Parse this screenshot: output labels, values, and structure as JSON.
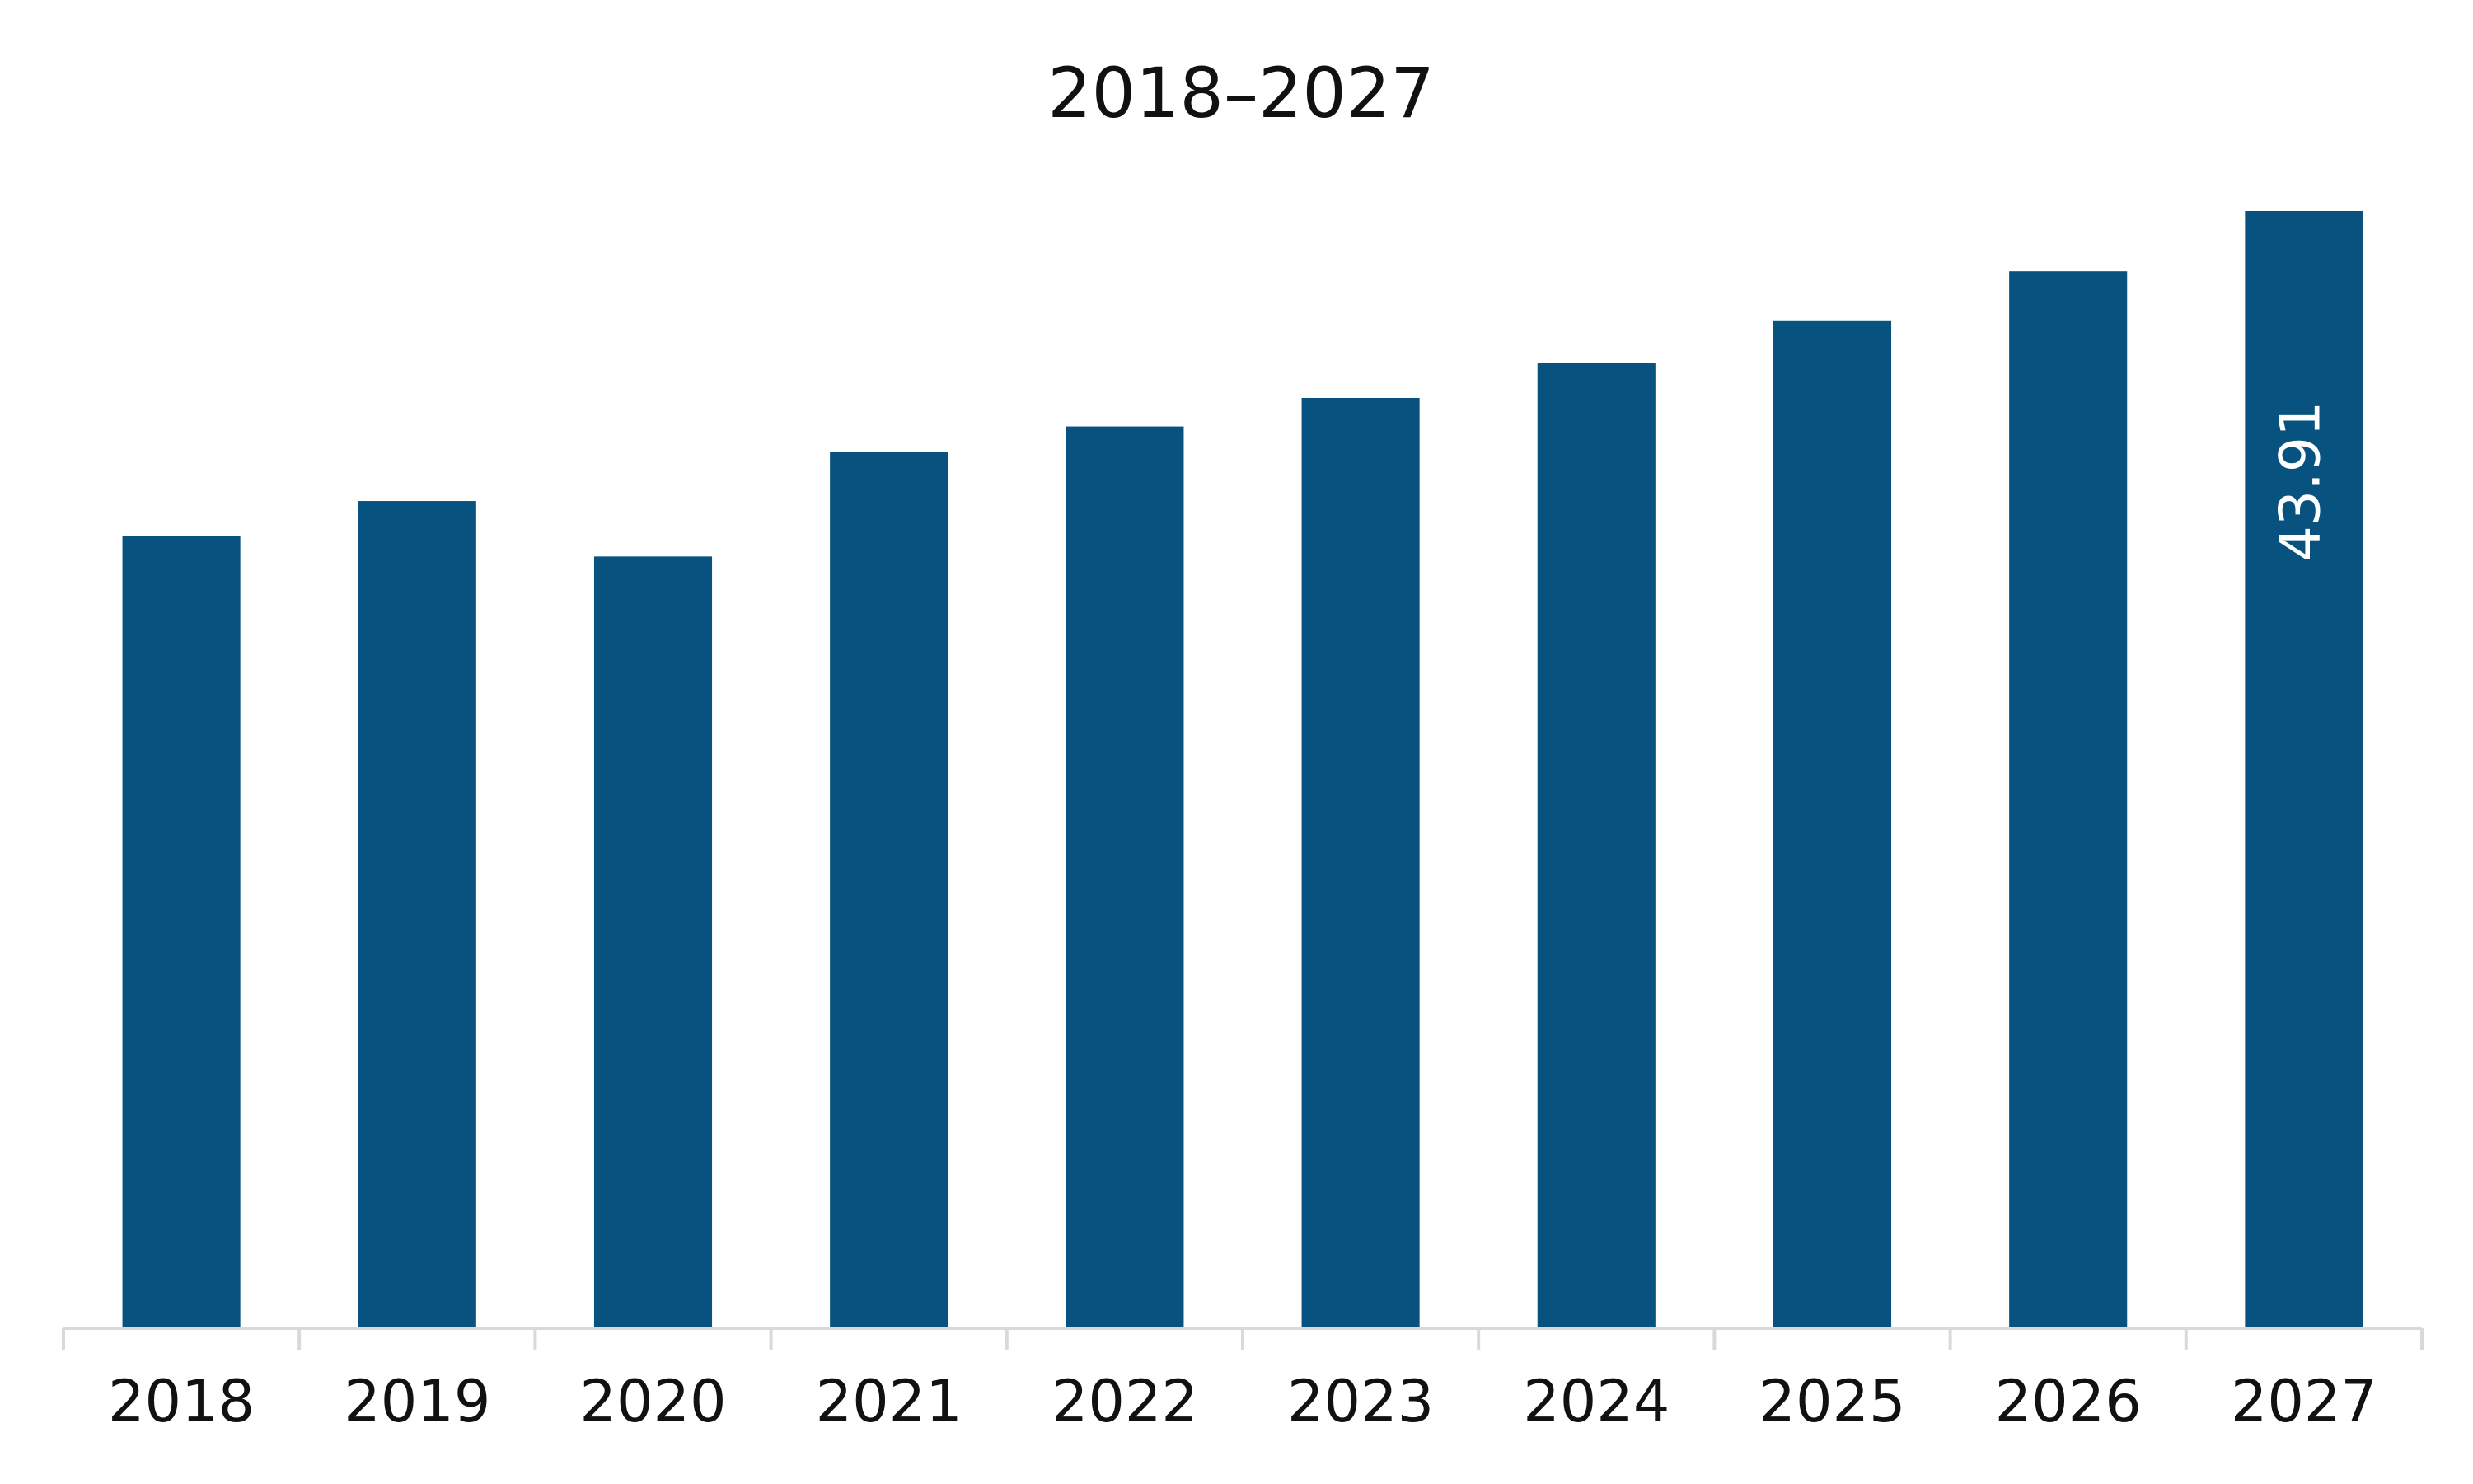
{
  "chart_data": {
    "type": "bar",
    "title": "2018–2027",
    "categories": [
      "2018",
      "2019",
      "2020",
      "2021",
      "2022",
      "2023",
      "2024",
      "2025",
      "2026",
      "2027"
    ],
    "values": [
      31.14,
      32.51,
      30.33,
      34.44,
      35.44,
      36.56,
      37.93,
      39.61,
      41.54,
      43.91
    ],
    "value_labels": [
      null,
      null,
      null,
      null,
      null,
      null,
      null,
      null,
      null,
      "43.91"
    ],
    "color": "#08527f"
  }
}
